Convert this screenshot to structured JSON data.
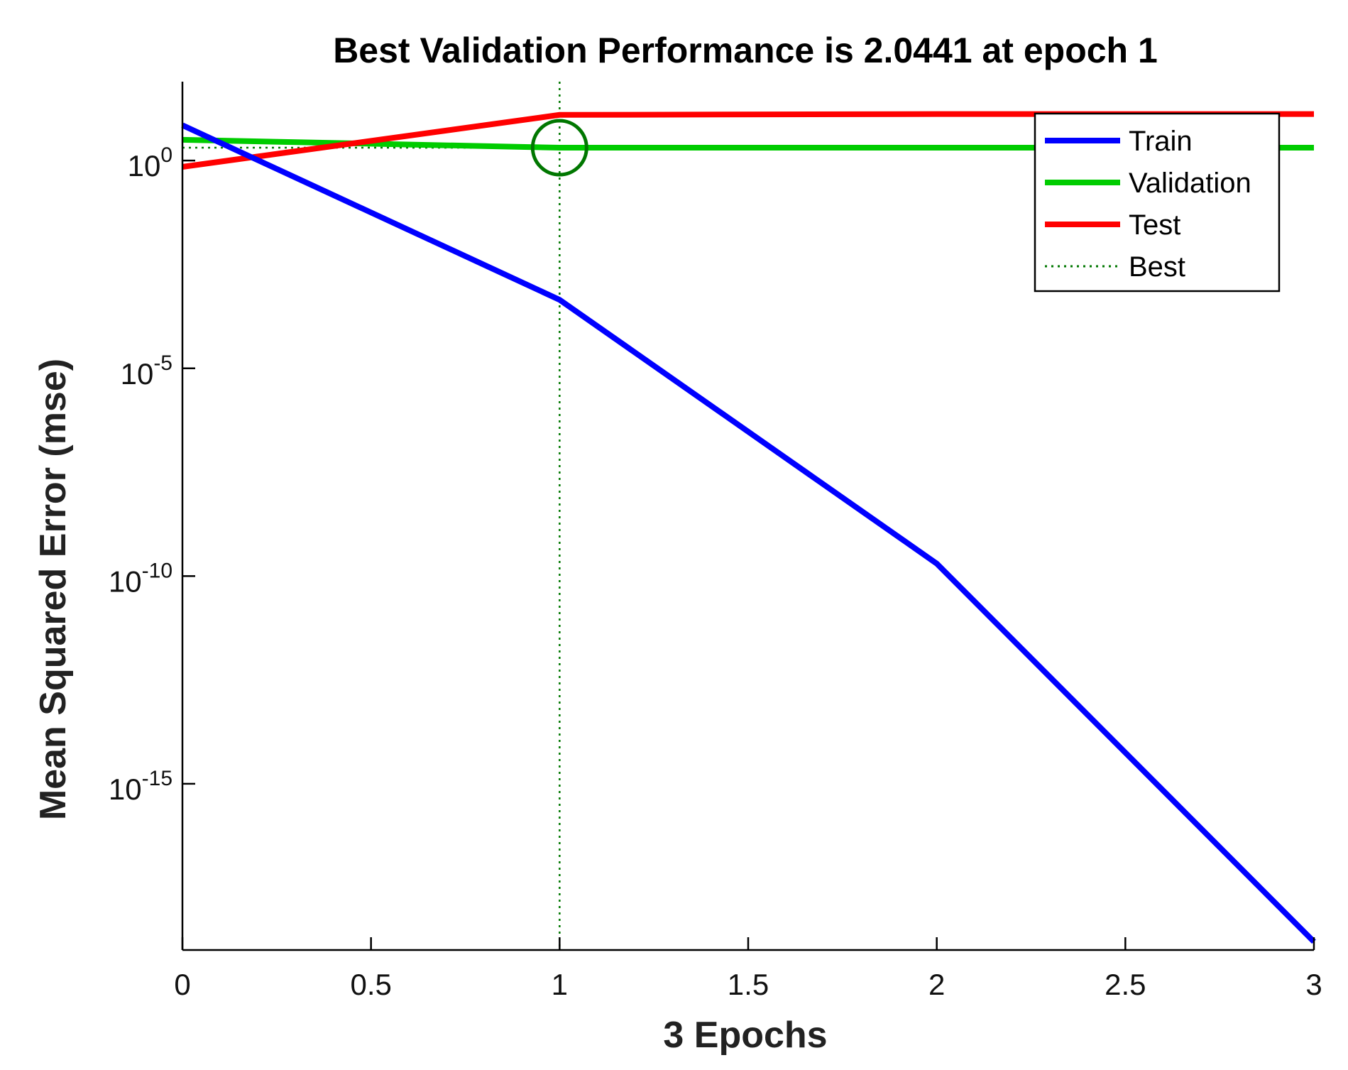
{
  "chart_data": {
    "type": "line",
    "title": "Best Validation Performance is 2.0441 at epoch 1",
    "xlabel": "3 Epochs",
    "ylabel": "Mean Squared Error  (mse)",
    "yscale": "log",
    "xlim": [
      0,
      3
    ],
    "ylim_log10": [
      -19.0,
      1.9
    ],
    "x_ticks": [
      0,
      0.5,
      1,
      1.5,
      2,
      2.5,
      3
    ],
    "x_tick_labels": [
      "0",
      "0.5",
      "1",
      "1.5",
      "2",
      "2.5",
      "3"
    ],
    "y_ticks": [
      {
        "base": "10",
        "exp": "0",
        "log10": 0
      },
      {
        "base": "10",
        "exp": "-5",
        "log10": -5
      },
      {
        "base": "10",
        "exp": "-10",
        "log10": -10
      },
      {
        "base": "10",
        "exp": "-15",
        "log10": -15
      }
    ],
    "series": [
      {
        "name": "Train",
        "color": "#0000ff",
        "x": [
          0,
          1,
          2,
          3
        ],
        "log10_values": [
          0.85,
          -3.35,
          -9.7,
          -18.8
        ]
      },
      {
        "name": "Validation",
        "color": "#00cc00",
        "x": [
          0,
          1,
          2,
          3
        ],
        "log10_values": [
          0.5,
          0.31,
          0.31,
          0.31
        ]
      },
      {
        "name": "Test",
        "color": "#ff0000",
        "x": [
          0,
          1,
          2,
          3
        ],
        "log10_values": [
          -0.15,
          1.1,
          1.12,
          1.12
        ]
      }
    ],
    "best": {
      "name": "Best",
      "epoch": 1,
      "value": 2.0441,
      "color": "#007700"
    },
    "legend": {
      "position": "top-right",
      "entries": [
        "Train",
        "Validation",
        "Test",
        "Best"
      ]
    }
  }
}
